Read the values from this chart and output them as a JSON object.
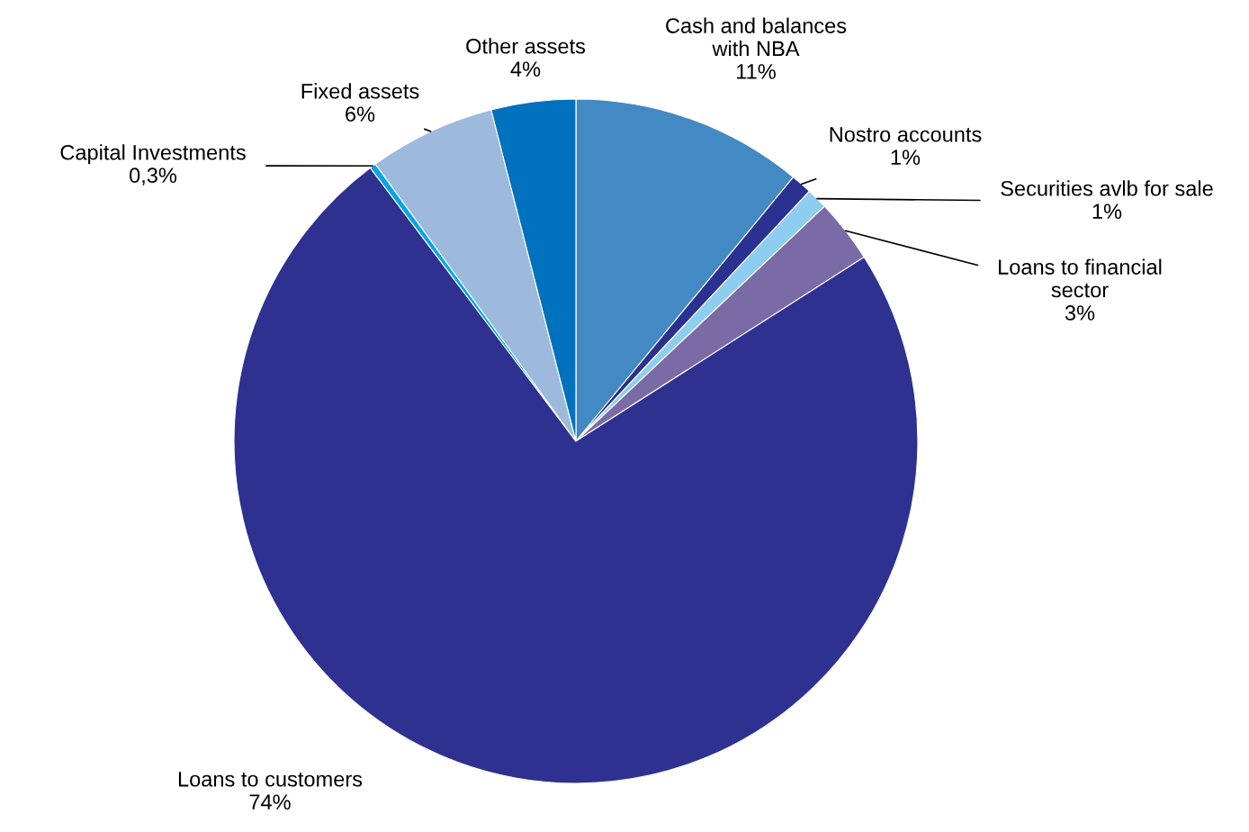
{
  "chart_data": {
    "type": "pie",
    "categories": [
      "Cash and balances\nwith NBA",
      "Nostro accounts",
      "Securities avlb for sale",
      "Loans to financial\nsector",
      "Loans to customers",
      "Capital Investments",
      "Fixed assets",
      "Other assets"
    ],
    "values": [
      11,
      1,
      1,
      3,
      74,
      0.3,
      6,
      4
    ],
    "value_labels": [
      "11%",
      "1%",
      "1%",
      "3%",
      "74%",
      "0,3%",
      "6%",
      "4%"
    ],
    "colors": [
      "#4389c3",
      "#2b3190",
      "#8ccdf0",
      "#7a6aa6",
      "#2e3190",
      "#00a6e6",
      "#9dbadc",
      "#0071bd"
    ]
  }
}
